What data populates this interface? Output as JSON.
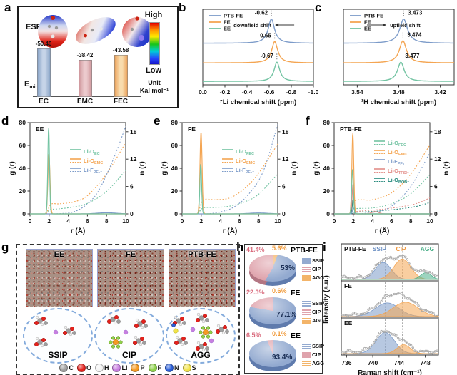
{
  "colors": {
    "blue": "#7c9bc9",
    "orange": "#f4a552",
    "green": "#72c3a2",
    "red": "#e28d88",
    "teal": "#25897c",
    "pie_ssip": "#93aad0",
    "pie_cip": "#dfa3ac",
    "pie_agg": "#f3b469",
    "pie_ssip_dark": "#5f7bad",
    "pie_cip_dark": "#b37683",
    "pie_agg_dark": "#c98f47"
  },
  "panel_a": {
    "letter": "a",
    "esp": "ESP",
    "emin_main": "E",
    "emin_sub": "min",
    "high": "High",
    "low": "Low",
    "unit1": "Unit",
    "unit2": "Kal mol⁻¹"
  },
  "panel_g": {
    "letter": "g",
    "boxes": [
      "EE",
      "FE",
      "PTB-FE"
    ],
    "clusters": [
      "SSIP",
      "CIP",
      "AGG"
    ],
    "atoms": [
      {
        "s": "C",
        "color": "#9e9e9e"
      },
      {
        "s": "O",
        "color": "#e4211c"
      },
      {
        "s": "H",
        "color": "#f4f4f4"
      },
      {
        "s": "Li",
        "color": "#c77fe0"
      },
      {
        "s": "P",
        "color": "#f59a23"
      },
      {
        "s": "F",
        "color": "#8ed24b"
      },
      {
        "s": "N",
        "color": "#2b5fd9"
      },
      {
        "s": "S",
        "color": "#f2e34b"
      }
    ]
  },
  "panel_h_letter": "h",
  "panel_i_letter": "i",
  "chart_data": [
    {
      "id": "a",
      "type": "bar",
      "title": "Emin of solvents",
      "categories": [
        "EC",
        "EMC",
        "FEC"
      ],
      "values": [
        -50.4,
        -38.42,
        -43.58
      ],
      "value_labels": [
        "-50.40",
        "-38.42",
        "-43.58"
      ],
      "unit": "Kal mol⁻¹",
      "bar_colors_light": [
        "#c6d4e8",
        "#eccacd",
        "#f8dcae"
      ],
      "bar_colors_dark": [
        "#8ca6c8",
        "#cf979c",
        "#eba55f"
      ]
    },
    {
      "id": "b",
      "type": "line",
      "kind": "nmr",
      "letter": "b",
      "xlabel": "⁷Li chemical shift (ppm)",
      "xlim": [
        0,
        -1
      ],
      "x_ticks": [
        {
          "v": 0,
          "label": "0.0"
        },
        {
          "v": -0.2,
          "label": "-0.2"
        },
        {
          "v": -0.4,
          "label": "-0.4"
        },
        {
          "v": -0.6,
          "label": "-0.6"
        },
        {
          "v": -0.8,
          "label": "-0.8"
        },
        {
          "v": -1.0,
          "label": "-1.0"
        }
      ],
      "annotation": {
        "text": "downfield shift",
        "arrow": "left"
      },
      "legend": [
        "PTB-FE",
        "FE",
        "EE"
      ],
      "series": [
        {
          "name": "PTB-FE",
          "color": "#7c9bc9",
          "center": -0.62,
          "peak_label": "-0.62",
          "base": 0.45,
          "amp": 34,
          "w": 0.035
        },
        {
          "name": "FE",
          "color": "#f4a552",
          "center": -0.65,
          "peak_label": "-0.65",
          "base": 0.71,
          "amp": 30,
          "w": 0.033
        },
        {
          "name": "EE",
          "color": "#72c3a2",
          "center": -0.67,
          "peak_label": "-0.67",
          "base": 0.955,
          "amp": 27,
          "w": 0.031
        }
      ]
    },
    {
      "id": "c",
      "type": "line",
      "kind": "nmr",
      "letter": "c",
      "xlabel": "¹H chemical shift (ppm)",
      "xlim": [
        3.56,
        3.4
      ],
      "x_ticks": [
        {
          "v": 3.54,
          "label": "3.54"
        },
        {
          "v": 3.48,
          "label": "3.48"
        },
        {
          "v": 3.42,
          "label": "3.42"
        }
      ],
      "annotation": {
        "text": "upfield shift",
        "arrow": "right"
      },
      "legend": [
        "PTB-FE",
        "FE",
        "EE"
      ],
      "series": [
        {
          "name": "PTB-FE",
          "color": "#7c9bc9",
          "center": 3.473,
          "peak_label": "3.473",
          "base": 0.45,
          "amp": 34,
          "w": 0.0068
        },
        {
          "name": "FE",
          "color": "#f4a552",
          "center": 3.474,
          "peak_label": "3.474",
          "base": 0.71,
          "amp": 31,
          "w": 0.0062
        },
        {
          "name": "EE",
          "color": "#72c3a2",
          "center": 3.477,
          "peak_label": "3.477",
          "base": 0.955,
          "amp": 27,
          "w": 0.0058
        }
      ]
    },
    {
      "id": "d",
      "type": "line",
      "kind": "rdf",
      "letter": "d",
      "label": "EE",
      "xlabel": "r (Å)",
      "ylabel": "g (r)",
      "ylabel2": "n (r)",
      "xlim": [
        0,
        10
      ],
      "ylim": [
        0,
        80
      ],
      "y2lim": [
        0,
        20
      ],
      "x_ticks": [
        0,
        2,
        4,
        6,
        8,
        10
      ],
      "y_ticks": [
        0,
        20,
        40,
        60,
        80
      ],
      "y2_ticks": [
        0,
        6,
        12,
        18
      ],
      "series": [
        {
          "main": "Li-O",
          "sub": "EC",
          "color": "#72c3a2",
          "peaks": [
            {
              "c": 1.95,
              "h": 76,
              "s": 0.09
            }
          ],
          "nr": [
            [
              1.7,
              0
            ],
            [
              2.1,
              0.9
            ],
            [
              3,
              1.1
            ],
            [
              4.5,
              1.5
            ],
            [
              6,
              2.3
            ],
            [
              8,
              4.9
            ],
            [
              10,
              9.6
            ]
          ]
        },
        {
          "main": "Li-O",
          "sub": "EMC",
          "color": "#f4a552",
          "peaks": [
            {
              "c": 1.98,
              "h": 53,
              "s": 0.11
            }
          ],
          "nr": [
            [
              1.7,
              0
            ],
            [
              2.2,
              2.1
            ],
            [
              3,
              2.2
            ],
            [
              4.5,
              2.6
            ],
            [
              6,
              4.0
            ],
            [
              8,
              8.8
            ],
            [
              10,
              15.6
            ]
          ]
        },
        {
          "main": "Li-F",
          "sub": "PF₆⁻",
          "color": "#7c9bc9",
          "peaks": [
            {
              "c": 8,
              "h": 1.0,
              "s": 1.0
            }
          ],
          "nr": [
            [
              2.5,
              0
            ],
            [
              4,
              0.2
            ],
            [
              5,
              0.8
            ],
            [
              6,
              2.2
            ],
            [
              7,
              4.5
            ],
            [
              8,
              8.6
            ],
            [
              9,
              13.5
            ],
            [
              10,
              19.2
            ]
          ]
        }
      ]
    },
    {
      "id": "e",
      "type": "line",
      "kind": "rdf",
      "letter": "e",
      "label": "FE",
      "xlabel": "r (Å)",
      "ylabel": "g (r)",
      "ylabel2": "n (r)",
      "xlim": [
        0,
        10
      ],
      "ylim": [
        0,
        80
      ],
      "y2lim": [
        0,
        20
      ],
      "x_ticks": [
        0,
        2,
        4,
        6,
        8,
        10
      ],
      "y_ticks": [
        0,
        20,
        40,
        60,
        80
      ],
      "y2_ticks": [
        0,
        6,
        12,
        18
      ],
      "series": [
        {
          "main": "Li-O",
          "sub": "FEC",
          "color": "#72c3a2",
          "peaks": [
            {
              "c": 1.95,
              "h": 44,
              "s": 0.09
            }
          ],
          "nr": [
            [
              1.7,
              0
            ],
            [
              2.2,
              1.3
            ],
            [
              3.5,
              1.4
            ],
            [
              5,
              1.7
            ],
            [
              6.5,
              2.6
            ],
            [
              8,
              4.3
            ],
            [
              10,
              8.8
            ]
          ]
        },
        {
          "main": "Li-O",
          "sub": "EMC",
          "color": "#f4a552",
          "peaks": [
            {
              "c": 1.98,
              "h": 72,
              "s": 0.11
            }
          ],
          "nr": [
            [
              1.7,
              0
            ],
            [
              2.2,
              3.0
            ],
            [
              3.5,
              3.1
            ],
            [
              5,
              3.5
            ],
            [
              6.5,
              5.5
            ],
            [
              8,
              8.9
            ],
            [
              10,
              15.3
            ]
          ]
        },
        {
          "main": "Li-F",
          "sub": "PF₆⁻",
          "color": "#7c9bc9",
          "peaks": [
            {
              "c": 8,
              "h": 0.8,
              "s": 1.0
            }
          ],
          "nr": [
            [
              2.6,
              0
            ],
            [
              4,
              0.4
            ],
            [
              5.5,
              1.6
            ],
            [
              7,
              4.4
            ],
            [
              8.5,
              9.4
            ],
            [
              10,
              19.6
            ]
          ]
        }
      ]
    },
    {
      "id": "f",
      "type": "line",
      "kind": "rdf",
      "letter": "f",
      "label": "PTB-FE",
      "xlabel": "r (Å)",
      "ylabel": "g (r)",
      "ylabel2": "n (r)",
      "xlim": [
        0,
        10
      ],
      "ylim": [
        0,
        80
      ],
      "y2lim": [
        0,
        20
      ],
      "x_ticks": [
        0,
        2,
        4,
        6,
        8,
        10
      ],
      "y_ticks": [
        0,
        20,
        40,
        60,
        80
      ],
      "y2_ticks": [
        0,
        6,
        12,
        18
      ],
      "series": [
        {
          "main": "Li-O",
          "sub": "FEC",
          "color": "#72c3a2",
          "peaks": [
            {
              "c": 1.92,
              "h": 39,
              "s": 0.09
            }
          ],
          "nr": [
            [
              1.7,
              0
            ],
            [
              2.2,
              1.1
            ],
            [
              4,
              1.3
            ],
            [
              6,
              2.2
            ],
            [
              8,
              4.4
            ],
            [
              10,
              8.6
            ]
          ]
        },
        {
          "main": "Li-O",
          "sub": "EMC",
          "color": "#f4a552",
          "peaks": [
            {
              "c": 1.95,
              "h": 71,
              "s": 0.1
            }
          ],
          "nr": [
            [
              1.7,
              0
            ],
            [
              2.2,
              2.9
            ],
            [
              4,
              3.1
            ],
            [
              6,
              4.6
            ],
            [
              8,
              8.7
            ],
            [
              10,
              15.1
            ]
          ]
        },
        {
          "main": "Li-F",
          "sub": "PF₆⁻",
          "color": "#7c9bc9",
          "peaks": [
            {
              "c": 2.05,
              "h": 5,
              "s": 0.12
            }
          ],
          "nr": [
            [
              2.6,
              0
            ],
            [
              4.5,
              0.5
            ],
            [
              6,
              1.7
            ],
            [
              8,
              6.0
            ],
            [
              10,
              13.4
            ]
          ]
        },
        {
          "main": "Li-O",
          "sub": "TFSI⁻",
          "color": "#e28d88",
          "peaks": [
            {
              "c": 1.98,
              "h": 26,
              "s": 0.1
            },
            {
              "c": 4.3,
              "h": 2,
              "s": 0.35
            }
          ],
          "nr": [
            [
              1.8,
              0
            ],
            [
              2.3,
              0.5
            ],
            [
              4.5,
              0.9
            ],
            [
              6.5,
              1.4
            ],
            [
              8.5,
              2.2
            ],
            [
              10,
              3.5
            ]
          ]
        },
        {
          "main": "Li-O",
          "sub": "BOB⁻",
          "color": "#25897c",
          "peaks": [
            {
              "c": 2.0,
              "h": 13,
              "s": 0.1
            }
          ],
          "nr": [
            [
              1.8,
              0
            ],
            [
              2.3,
              0.35
            ],
            [
              4.5,
              0.6
            ],
            [
              6.5,
              1.0
            ],
            [
              8.5,
              1.6
            ],
            [
              10,
              2.5
            ]
          ]
        }
      ]
    },
    {
      "id": "h",
      "type": "pie",
      "pies": [
        {
          "title": "PTB-FE",
          "slices": [
            {
              "label": "SSIP",
              "pct": 53.0,
              "pct_label": "53%"
            },
            {
              "label": "CIP",
              "pct": 41.4,
              "pct_label": "41.4%"
            },
            {
              "label": "AGG",
              "pct": 5.6,
              "pct_label": "5.6%"
            }
          ]
        },
        {
          "title": "FE",
          "slices": [
            {
              "label": "SSIP",
              "pct": 77.1,
              "pct_label": "77.1%"
            },
            {
              "label": "CIP",
              "pct": 22.3,
              "pct_label": "22.3%"
            },
            {
              "label": "AGG",
              "pct": 0.6,
              "pct_label": "0.6%"
            }
          ]
        },
        {
          "title": "EE",
          "slices": [
            {
              "label": "SSIP",
              "pct": 93.4,
              "pct_label": "93.4%"
            },
            {
              "label": "CIP",
              "pct": 6.5,
              "pct_label": "6.5%"
            },
            {
              "label": "AGG",
              "pct": 0.1,
              "pct_label": "0.1%"
            }
          ]
        }
      ],
      "legend": [
        "SSIP",
        "CIP",
        "AGG"
      ]
    },
    {
      "id": "i",
      "type": "line",
      "kind": "raman",
      "xlabel": "Raman shift (cm⁻¹)",
      "ylabel": "Intensity (a.u.)",
      "xlim": [
        735.2,
        750.0
      ],
      "x_ticks": [
        736,
        740,
        744,
        748
      ],
      "dashed_lines": [
        741.9,
        744.5,
        748.1
      ],
      "headers": [
        {
          "text": "SSIP",
          "x": 741.0,
          "color": "#6b8fc3"
        },
        {
          "text": "CIP",
          "x": 744.3,
          "color": "#f0973c"
        },
        {
          "text": "AGG",
          "x": 748.3,
          "color": "#4db08a"
        }
      ],
      "panels": [
        {
          "name": "PTB-FE",
          "peaks": [
            {
              "c": 741.6,
              "h": 0.5,
              "s": 1.2,
              "color": "#7c9bc9"
            },
            {
              "c": 744.5,
              "h": 0.6,
              "s": 1.3,
              "color": "#f4a552"
            },
            {
              "c": 748.1,
              "h": 0.2,
              "s": 0.8,
              "color": "#4db08a"
            }
          ]
        },
        {
          "name": "FE",
          "peaks": [
            {
              "c": 742.2,
              "h": 0.4,
              "s": 1.8,
              "color": "#7c9bc9"
            },
            {
              "c": 745.0,
              "h": 0.42,
              "s": 1.9,
              "color": "#f4a552"
            }
          ]
        },
        {
          "name": "EE",
          "peaks": [
            {
              "c": 741.9,
              "h": 0.62,
              "s": 1.4,
              "color": "#7c9bc9"
            },
            {
              "c": 744.7,
              "h": 0.26,
              "s": 1.0,
              "color": "#f4a552"
            }
          ]
        }
      ]
    }
  ]
}
